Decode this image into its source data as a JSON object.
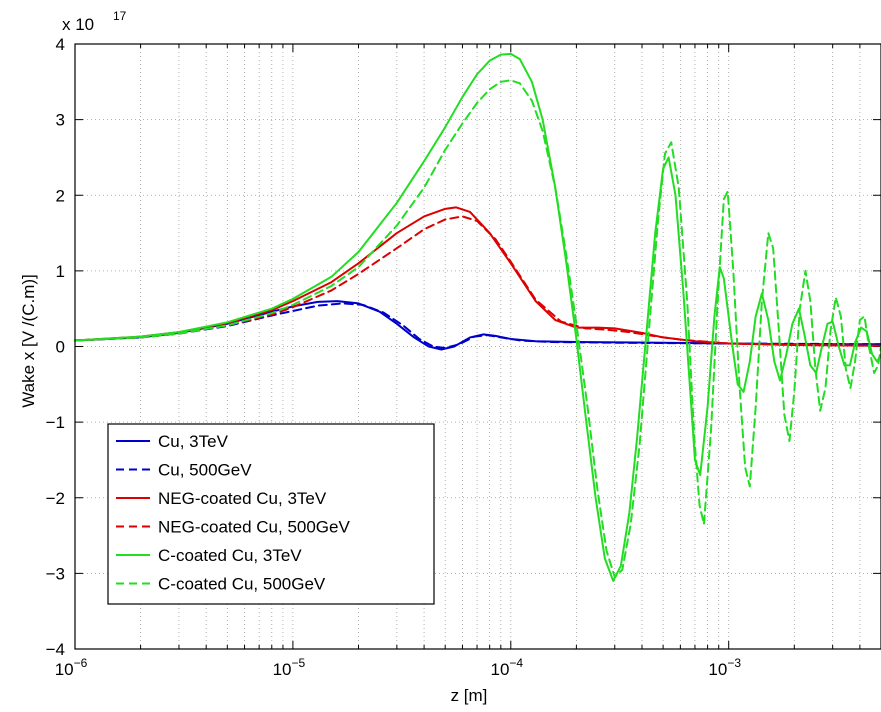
{
  "chart_data": {
    "type": "line",
    "title": "",
    "xlabel": "z [m]",
    "ylabel": "Wake x [V /(C.m)]",
    "y_exponent_label": "x 10",
    "y_exponent_power": "17",
    "xscale": "log",
    "xlim": [
      1e-06,
      0.005
    ],
    "ylim": [
      -4,
      4
    ],
    "grid": true,
    "legend_position": "lower-left",
    "x_ticks": [
      {
        "value": 1e-06,
        "base": "10",
        "exp": "−6"
      },
      {
        "value": 1e-05,
        "base": "10",
        "exp": "−5"
      },
      {
        "value": 0.0001,
        "base": "10",
        "exp": "−4"
      },
      {
        "value": 0.001,
        "base": "10",
        "exp": "−3"
      }
    ],
    "y_ticks": [
      {
        "value": -4,
        "label": "−4"
      },
      {
        "value": -3,
        "label": "−3"
      },
      {
        "value": -2,
        "label": "−2"
      },
      {
        "value": -1,
        "label": "−1"
      },
      {
        "value": 0,
        "label": "0"
      },
      {
        "value": 1,
        "label": "1"
      },
      {
        "value": 2,
        "label": "2"
      },
      {
        "value": 3,
        "label": "3"
      },
      {
        "value": 4,
        "label": "4"
      }
    ],
    "series": [
      {
        "name": "Cu, 3TeV",
        "color": "#0000cc",
        "dash": "solid",
        "points": [
          [
            1e-06,
            0.08
          ],
          [
            2e-06,
            0.12
          ],
          [
            3e-06,
            0.18
          ],
          [
            5e-06,
            0.3
          ],
          [
            8e-06,
            0.46
          ],
          [
            1e-05,
            0.53
          ],
          [
            1.3e-05,
            0.59
          ],
          [
            1.6e-05,
            0.6
          ],
          [
            2e-05,
            0.57
          ],
          [
            2.5e-05,
            0.46
          ],
          [
            3e-05,
            0.3
          ],
          [
            3.6e-05,
            0.12
          ],
          [
            4.2e-05,
            0.0
          ],
          [
            4.8e-05,
            -0.04
          ],
          [
            5.5e-05,
            0.0
          ],
          [
            6.5e-05,
            0.12
          ],
          [
            7.5e-05,
            0.16
          ],
          [
            8.5e-05,
            0.14
          ],
          [
            0.0001,
            0.1
          ],
          [
            0.00013,
            0.07
          ],
          [
            0.0002,
            0.06
          ],
          [
            0.0005,
            0.05
          ],
          [
            0.001,
            0.04
          ],
          [
            0.002,
            0.03
          ],
          [
            0.005,
            0.03
          ]
        ]
      },
      {
        "name": "Cu, 500GeV",
        "color": "#0000cc",
        "dash": "dashed",
        "points": [
          [
            1e-06,
            0.08
          ],
          [
            2e-06,
            0.12
          ],
          [
            3e-06,
            0.17
          ],
          [
            5e-06,
            0.27
          ],
          [
            8e-06,
            0.41
          ],
          [
            1e-05,
            0.47
          ],
          [
            1.3e-05,
            0.54
          ],
          [
            1.7e-05,
            0.57
          ],
          [
            2.1e-05,
            0.55
          ],
          [
            2.6e-05,
            0.45
          ],
          [
            3.2e-05,
            0.28
          ],
          [
            3.8e-05,
            0.1
          ],
          [
            4.4e-05,
            0.0
          ],
          [
            5e-05,
            -0.02
          ],
          [
            5.8e-05,
            0.03
          ],
          [
            6.8e-05,
            0.13
          ],
          [
            7.8e-05,
            0.15
          ],
          [
            9e-05,
            0.12
          ],
          [
            0.00011,
            0.08
          ],
          [
            0.00015,
            0.06
          ],
          [
            0.0003,
            0.05
          ],
          [
            0.001,
            0.04
          ],
          [
            0.005,
            0.03
          ]
        ]
      },
      {
        "name": "NEG-coated Cu, 3TeV",
        "color": "#dd0000",
        "dash": "solid",
        "points": [
          [
            1e-06,
            0.08
          ],
          [
            2e-06,
            0.13
          ],
          [
            3e-06,
            0.19
          ],
          [
            5e-06,
            0.31
          ],
          [
            8e-06,
            0.48
          ],
          [
            1e-05,
            0.6
          ],
          [
            1.5e-05,
            0.85
          ],
          [
            2e-05,
            1.1
          ],
          [
            3e-05,
            1.5
          ],
          [
            4e-05,
            1.72
          ],
          [
            5e-05,
            1.82
          ],
          [
            5.6e-05,
            1.84
          ],
          [
            6.5e-05,
            1.78
          ],
          [
            8e-05,
            1.5
          ],
          [
            0.0001,
            1.1
          ],
          [
            0.00013,
            0.6
          ],
          [
            0.00016,
            0.35
          ],
          [
            0.0002,
            0.25
          ],
          [
            0.00025,
            0.25
          ],
          [
            0.0003,
            0.24
          ],
          [
            0.0004,
            0.18
          ],
          [
            0.0005,
            0.12
          ],
          [
            0.0007,
            0.07
          ],
          [
            0.001,
            0.04
          ],
          [
            0.002,
            0.02
          ],
          [
            0.005,
            0.01
          ]
        ]
      },
      {
        "name": "NEG-coated Cu, 500GeV",
        "color": "#dd0000",
        "dash": "dashed",
        "points": [
          [
            1e-06,
            0.08
          ],
          [
            2e-06,
            0.12
          ],
          [
            3e-06,
            0.17
          ],
          [
            5e-06,
            0.28
          ],
          [
            8e-06,
            0.42
          ],
          [
            1e-05,
            0.52
          ],
          [
            1.5e-05,
            0.74
          ],
          [
            2e-05,
            0.96
          ],
          [
            3e-05,
            1.3
          ],
          [
            4e-05,
            1.55
          ],
          [
            5e-05,
            1.68
          ],
          [
            6e-05,
            1.72
          ],
          [
            7e-05,
            1.66
          ],
          [
            8.5e-05,
            1.42
          ],
          [
            0.0001,
            1.12
          ],
          [
            0.00013,
            0.62
          ],
          [
            0.00017,
            0.33
          ],
          [
            0.00022,
            0.24
          ],
          [
            0.00028,
            0.22
          ],
          [
            0.00035,
            0.19
          ],
          [
            0.00045,
            0.14
          ],
          [
            0.0006,
            0.09
          ],
          [
            0.001,
            0.04
          ],
          [
            0.002,
            0.02
          ],
          [
            0.005,
            0.01
          ]
        ]
      },
      {
        "name": "C-coated Cu, 3TeV",
        "color": "#22dd22",
        "dash": "solid",
        "points": [
          [
            1e-06,
            0.08
          ],
          [
            2e-06,
            0.13
          ],
          [
            3e-06,
            0.19
          ],
          [
            5e-06,
            0.32
          ],
          [
            8e-06,
            0.5
          ],
          [
            1e-05,
            0.63
          ],
          [
            1.5e-05,
            0.92
          ],
          [
            2e-05,
            1.25
          ],
          [
            3e-05,
            1.9
          ],
          [
            4e-05,
            2.45
          ],
          [
            5e-05,
            2.9
          ],
          [
            6e-05,
            3.3
          ],
          [
            7e-05,
            3.6
          ],
          [
            8e-05,
            3.78
          ],
          [
            9e-05,
            3.86
          ],
          [
            0.0001,
            3.87
          ],
          [
            0.00011,
            3.8
          ],
          [
            0.000125,
            3.5
          ],
          [
            0.00014,
            3.0
          ],
          [
            0.00016,
            2.1
          ],
          [
            0.00018,
            1.1
          ],
          [
            0.0002,
            0.1
          ],
          [
            0.00022,
            -0.9
          ],
          [
            0.000245,
            -2.0
          ],
          [
            0.00027,
            -2.8
          ],
          [
            0.000295,
            -3.1
          ],
          [
            0.00032,
            -2.9
          ],
          [
            0.00035,
            -2.2
          ],
          [
            0.00038,
            -1.2
          ],
          [
            0.00042,
            0.2
          ],
          [
            0.00046,
            1.5
          ],
          [
            0.0005,
            2.35
          ],
          [
            0.00053,
            2.5
          ],
          [
            0.00057,
            2.0
          ],
          [
            0.00062,
            0.7
          ],
          [
            0.00067,
            -0.7
          ],
          [
            0.0007,
            -1.5
          ],
          [
            0.00074,
            -1.7
          ],
          [
            0.0008,
            -0.8
          ],
          [
            0.00086,
            0.4
          ],
          [
            0.00091,
            1.05
          ],
          [
            0.00095,
            0.9
          ],
          [
            0.00103,
            0.1
          ],
          [
            0.0011,
            -0.5
          ],
          [
            0.00117,
            -0.6
          ],
          [
            0.00125,
            -0.2
          ],
          [
            0.00133,
            0.4
          ],
          [
            0.00142,
            0.7
          ],
          [
            0.00152,
            0.35
          ],
          [
            0.00162,
            -0.2
          ],
          [
            0.00172,
            -0.45
          ],
          [
            0.00184,
            -0.1
          ],
          [
            0.00196,
            0.3
          ],
          [
            0.0021,
            0.5
          ],
          [
            0.00223,
            0.15
          ],
          [
            0.00237,
            -0.25
          ],
          [
            0.00252,
            -0.35
          ],
          [
            0.00268,
            0.0
          ],
          [
            0.00284,
            0.3
          ],
          [
            0.003,
            0.33
          ],
          [
            0.0032,
            0.0
          ],
          [
            0.0034,
            -0.25
          ],
          [
            0.0036,
            -0.25
          ],
          [
            0.0038,
            0.05
          ],
          [
            0.00405,
            0.25
          ],
          [
            0.0043,
            0.2
          ],
          [
            0.00455,
            -0.1
          ],
          [
            0.0048,
            -0.2
          ],
          [
            0.005,
            -0.1
          ]
        ]
      },
      {
        "name": "C-coated Cu, 500GeV",
        "color": "#22dd22",
        "dash": "dashed",
        "points": [
          [
            1e-06,
            0.08
          ],
          [
            2e-06,
            0.12
          ],
          [
            3e-06,
            0.17
          ],
          [
            5e-06,
            0.28
          ],
          [
            8e-06,
            0.44
          ],
          [
            1e-05,
            0.55
          ],
          [
            1.5e-05,
            0.8
          ],
          [
            2e-05,
            1.05
          ],
          [
            3e-05,
            1.6
          ],
          [
            4e-05,
            2.1
          ],
          [
            5e-05,
            2.6
          ],
          [
            6e-05,
            2.95
          ],
          [
            7e-05,
            3.22
          ],
          [
            8e-05,
            3.4
          ],
          [
            9e-05,
            3.5
          ],
          [
            0.0001,
            3.52
          ],
          [
            0.00011,
            3.48
          ],
          [
            0.000125,
            3.25
          ],
          [
            0.00014,
            2.85
          ],
          [
            0.00016,
            2.1
          ],
          [
            0.00018,
            1.2
          ],
          [
            0.0002,
            0.3
          ],
          [
            0.000225,
            -0.8
          ],
          [
            0.00025,
            -1.9
          ],
          [
            0.000275,
            -2.7
          ],
          [
            0.0003,
            -3.05
          ],
          [
            0.000325,
            -2.95
          ],
          [
            0.000355,
            -2.35
          ],
          [
            0.00039,
            -1.3
          ],
          [
            0.00043,
            0.2
          ],
          [
            0.000475,
            1.7
          ],
          [
            0.00051,
            2.55
          ],
          [
            0.000545,
            2.7
          ],
          [
            0.00059,
            2.1
          ],
          [
            0.000645,
            0.6
          ],
          [
            0.000695,
            -1.2
          ],
          [
            0.000735,
            -2.1
          ],
          [
            0.00077,
            -2.35
          ],
          [
            0.00083,
            -1.1
          ],
          [
            0.00089,
            0.6
          ],
          [
            0.00095,
            1.95
          ],
          [
            0.00099,
            2.05
          ],
          [
            0.00105,
            1.0
          ],
          [
            0.00112,
            -0.5
          ],
          [
            0.00119,
            -1.6
          ],
          [
            0.00125,
            -1.85
          ],
          [
            0.00133,
            -0.8
          ],
          [
            0.00142,
            0.6
          ],
          [
            0.00152,
            1.5
          ],
          [
            0.0016,
            1.3
          ],
          [
            0.0017,
            0.2
          ],
          [
            0.0018,
            -0.9
          ],
          [
            0.0019,
            -1.25
          ],
          [
            0.002,
            -0.6
          ],
          [
            0.00212,
            0.5
          ],
          [
            0.00225,
            1.0
          ],
          [
            0.00237,
            0.6
          ],
          [
            0.0025,
            -0.3
          ],
          [
            0.00263,
            -0.85
          ],
          [
            0.00278,
            -0.55
          ],
          [
            0.00293,
            0.2
          ],
          [
            0.0031,
            0.65
          ],
          [
            0.00327,
            0.4
          ],
          [
            0.00345,
            -0.3
          ],
          [
            0.00362,
            -0.55
          ],
          [
            0.0038,
            -0.2
          ],
          [
            0.004,
            0.35
          ],
          [
            0.0042,
            0.4
          ],
          [
            0.0044,
            0.0
          ],
          [
            0.00465,
            -0.35
          ],
          [
            0.00485,
            -0.25
          ],
          [
            0.005,
            0.0
          ]
        ]
      }
    ]
  }
}
